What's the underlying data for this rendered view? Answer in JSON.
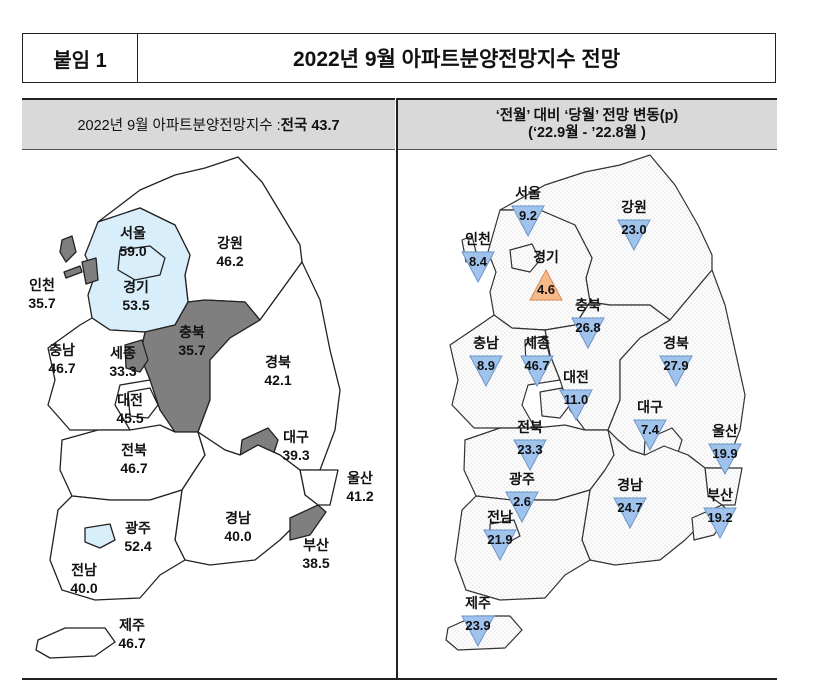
{
  "header": {
    "tag": "붙임 1",
    "title": "2022년 9월 아파트분양전망지수 전망"
  },
  "left_panel": {
    "heading_prefix": "2022년 9월 아파트분양전망지수 : ",
    "heading_value": "전국 43.7",
    "regions": [
      {
        "id": "seoul",
        "name": "서울",
        "value": "59.0",
        "fill": "#d9eefb"
      },
      {
        "id": "gangwon",
        "name": "강원",
        "value": "46.2",
        "fill": "#ffffff"
      },
      {
        "id": "incheon",
        "name": "인천",
        "value": "35.7",
        "fill": "#7f7f7f"
      },
      {
        "id": "gyeonggi",
        "name": "경기",
        "value": "53.5",
        "fill": "#d9eefb"
      },
      {
        "id": "chungbuk",
        "name": "충북",
        "value": "35.7",
        "fill": "#7f7f7f"
      },
      {
        "id": "chungnam",
        "name": "충남",
        "value": "46.7",
        "fill": "#ffffff"
      },
      {
        "id": "sejong",
        "name": "세종",
        "value": "33.3",
        "fill": "#7f7f7f"
      },
      {
        "id": "gyeongbuk",
        "name": "경북",
        "value": "42.1",
        "fill": "#ffffff"
      },
      {
        "id": "daejeon",
        "name": "대전",
        "value": "45.5",
        "fill": "#ffffff"
      },
      {
        "id": "daegu",
        "name": "대구",
        "value": "39.3",
        "fill": "#7f7f7f"
      },
      {
        "id": "jeonbuk",
        "name": "전북",
        "value": "46.7",
        "fill": "#ffffff"
      },
      {
        "id": "ulsan",
        "name": "울산",
        "value": "41.2",
        "fill": "#ffffff"
      },
      {
        "id": "gwangju",
        "name": "광주",
        "value": "52.4",
        "fill": "#d9eefb"
      },
      {
        "id": "gyeongnam",
        "name": "경남",
        "value": "40.0",
        "fill": "#ffffff"
      },
      {
        "id": "busan",
        "name": "부산",
        "value": "38.5",
        "fill": "#7f7f7f"
      },
      {
        "id": "jeonnam",
        "name": "전남",
        "value": "40.0",
        "fill": "#ffffff"
      },
      {
        "id": "jeju",
        "name": "제주",
        "value": "46.7",
        "fill": "#ffffff"
      }
    ]
  },
  "right_panel": {
    "heading_line1": "‘전월’ 대비 ‘당월’ 전망 변동(p)",
    "heading_line2": "(‘22.9월 - ’22.8월 )",
    "regions": [
      {
        "id": "seoul",
        "name": "서울",
        "change": "9.2",
        "direction": "down"
      },
      {
        "id": "gangwon",
        "name": "강원",
        "change": "23.0",
        "direction": "down"
      },
      {
        "id": "incheon",
        "name": "인천",
        "change": "8.4",
        "direction": "down"
      },
      {
        "id": "gyeonggi",
        "name": "경기",
        "change": "4.6",
        "direction": "up"
      },
      {
        "id": "chungbuk",
        "name": "충북",
        "change": "26.8",
        "direction": "down"
      },
      {
        "id": "chungnam",
        "name": "충남",
        "change": "8.9",
        "direction": "down"
      },
      {
        "id": "sejong",
        "name": "세종",
        "change": "46.7",
        "direction": "down"
      },
      {
        "id": "gyeongbuk",
        "name": "경북",
        "change": "27.9",
        "direction": "down"
      },
      {
        "id": "daejeon",
        "name": "대전",
        "change": "11.0",
        "direction": "down"
      },
      {
        "id": "daegu",
        "name": "대구",
        "change": "7.4",
        "direction": "down"
      },
      {
        "id": "ulsan",
        "name": "울산",
        "change": "19.9",
        "direction": "down"
      },
      {
        "id": "jeonbuk",
        "name": "전북",
        "change": "23.3",
        "direction": "down"
      },
      {
        "id": "gwangju",
        "name": "광주",
        "change": "2.6",
        "direction": "down"
      },
      {
        "id": "gyeongnam",
        "name": "경남",
        "change": "24.7",
        "direction": "down"
      },
      {
        "id": "busan",
        "name": "부산",
        "change": "19.2",
        "direction": "down"
      },
      {
        "id": "jeonnam",
        "name": "전남",
        "change": "21.9",
        "direction": "down"
      },
      {
        "id": "jeju",
        "name": "제주",
        "change": "23.9",
        "direction": "down"
      }
    ],
    "colors": {
      "down": "#9fc3ec",
      "up": "#f6b98a"
    }
  }
}
